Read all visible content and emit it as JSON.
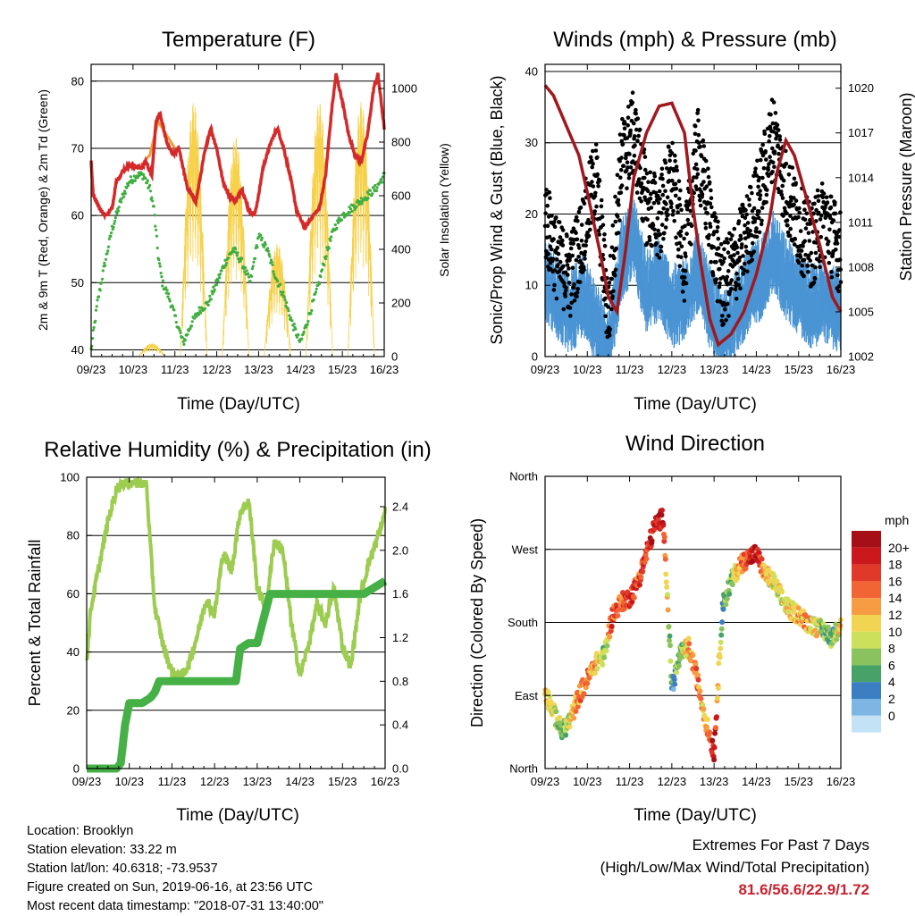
{
  "info": {
    "location": "Location: Brooklyn",
    "elevation": "Station elevation: 33.22 m",
    "latlon": "Station lat/lon: 40.6318; -73.9537",
    "created": "Figure created on Sun, 2019-06-16, at 23:56 UTC",
    "latest": "Most recent data timestamp: \"2018-07-31 13:40:00\""
  },
  "extremes": {
    "title": "Extremes For Past 7 Days",
    "subtitle": "(High/Low/Max Wind/Total Precipitation)",
    "values": "81.6/56.6/22.9/1.72"
  },
  "x_tick_labels": [
    "09/23",
    "10/23",
    "11/23",
    "12/23",
    "13/23",
    "14/23",
    "15/23",
    "16/23"
  ],
  "x_axis_label": "Time (Day/UTC)",
  "colors": {
    "temp_2m": "#d42a2a",
    "temp_9m": "#f29a3a",
    "dewpoint": "#3fae3f",
    "solar": "#f7d14a",
    "sonic_wind": "#4a94d4",
    "gust": "#000000",
    "pressure": "#a0191f",
    "rh": "#9ccc50",
    "rain": "#45b045"
  },
  "chart_data": [
    {
      "type": "line",
      "title": "Temperature (F)",
      "xlabel": "Time (Day/UTC)",
      "ylabel": "2m & 9m T (Red, Orange) & 2m Td (Green)",
      "y2label": "Solar Insolation (Yellow)",
      "x_ticks": [
        "09/23",
        "10/23",
        "11/23",
        "12/23",
        "13/23",
        "14/23",
        "15/23",
        "16/23"
      ],
      "ylim": [
        39,
        82.5
      ],
      "y_ticks": [
        40,
        50,
        60,
        70,
        80
      ],
      "y2lim": [
        0,
        1090
      ],
      "y2_ticks": [
        0,
        200,
        400,
        600,
        800,
        1000
      ],
      "grid": "horizontal",
      "series": [
        {
          "name": "2m T",
          "color": "#d42a2a",
          "axis": "left",
          "x": [
            0,
            0.05,
            0.2,
            0.35,
            0.5,
            0.6,
            0.8,
            1.0,
            1.2,
            1.3,
            1.45,
            1.55,
            1.65,
            1.8,
            1.95,
            2.1,
            2.3,
            2.5,
            2.7,
            2.85,
            3.0,
            3.15,
            3.3,
            3.45,
            3.6,
            3.75,
            3.9,
            4.0,
            4.1,
            4.3,
            4.45,
            4.6,
            4.75,
            4.9,
            5.1,
            5.3,
            5.45,
            5.6,
            5.75,
            5.85,
            6.0,
            6.15,
            6.3,
            6.45,
            6.6,
            6.75,
            6.85,
            7.0
          ],
          "y": [
            68,
            63,
            61,
            60,
            61,
            65,
            67,
            67.5,
            67,
            68,
            66,
            74,
            75,
            71,
            69,
            70,
            64,
            62,
            69,
            73,
            70,
            65,
            63,
            62,
            64,
            61,
            60,
            63,
            67,
            71,
            73,
            70,
            66,
            61,
            58,
            60,
            61,
            66,
            76,
            81,
            77,
            72,
            69,
            68,
            72,
            79,
            81,
            73
          ]
        },
        {
          "name": "9m T",
          "color": "#f29a3a",
          "axis": "left",
          "x": [
            1.2,
            1.4,
            1.6,
            1.8,
            2.0
          ],
          "y": [
            67.5,
            69,
            74,
            72,
            70
          ]
        },
        {
          "name": "2m Td",
          "color": "#3fae3f",
          "axis": "left",
          "x": [
            0,
            0.15,
            0.3,
            0.5,
            0.7,
            0.9,
            1.1,
            1.25,
            1.4,
            1.5,
            1.6,
            1.7,
            1.85,
            2.0,
            2.2,
            2.4,
            2.6,
            2.8,
            3.0,
            3.2,
            3.4,
            3.6,
            3.8,
            4.0,
            4.2,
            4.4,
            4.6,
            4.8,
            5.0,
            5.2,
            5.4,
            5.6,
            5.8,
            6.0,
            6.2,
            6.4,
            6.6,
            6.8,
            7.0
          ],
          "y": [
            40,
            47,
            52,
            58,
            62,
            65,
            66,
            66,
            64,
            61,
            54,
            50,
            48,
            45,
            41,
            44,
            46,
            47,
            50,
            53,
            55,
            53,
            50,
            57,
            55,
            51,
            48,
            44,
            41,
            45,
            49,
            54,
            58,
            60,
            61,
            62,
            63,
            64,
            66
          ]
        },
        {
          "name": "Solar Insolation",
          "color": "#f7d14a",
          "axis": "right",
          "x": [
            0.45,
            0.95,
            1.45,
            1.95,
            2.45,
            2.95,
            3.45,
            3.95,
            4.45,
            4.95,
            5.45,
            5.95,
            6.45,
            6.95
          ],
          "y": [
            0,
            20,
            50,
            30,
            950,
            60,
            820,
            350,
            420,
            580,
            950,
            700,
            950,
            900
          ]
        }
      ]
    },
    {
      "type": "scatter",
      "title": "Winds (mph) & Pressure (mb)",
      "xlabel": "Time (Day/UTC)",
      "ylabel": "Sonic/Prop Wind & Gust (Blue, Black)",
      "y2label": "Station Pressure (Maroon)",
      "x_ticks": [
        "09/23",
        "10/23",
        "11/23",
        "12/23",
        "13/23",
        "14/23",
        "15/23",
        "16/23"
      ],
      "ylim": [
        0,
        41
      ],
      "y_ticks": [
        0,
        10,
        20,
        30,
        40
      ],
      "y2lim": [
        1002,
        1021.6
      ],
      "y2_ticks": [
        1002,
        1005,
        1008,
        1011,
        1014,
        1017,
        1020
      ],
      "grid": "horizontal",
      "series": [
        {
          "name": "Sonic/Prop Wind",
          "color": "#4a94d4",
          "x": [
            0,
            0.3,
            0.6,
            0.9,
            1.2,
            1.5,
            1.8,
            2.1,
            2.4,
            2.7,
            3.0,
            3.3,
            3.6,
            3.9,
            4.2,
            4.5,
            4.8,
            5.1,
            5.4,
            5.7,
            6.0,
            6.3,
            6.6,
            7.0
          ],
          "y": [
            12,
            9,
            7,
            10,
            6,
            2,
            14,
            18,
            10,
            12,
            8,
            9,
            13,
            8,
            4,
            7,
            10,
            12,
            16,
            12,
            10,
            8,
            9,
            7
          ]
        },
        {
          "name": "Gust",
          "color": "#000000",
          "x": [
            0,
            0.3,
            0.6,
            0.9,
            1.2,
            1.5,
            1.8,
            2.1,
            2.4,
            2.7,
            3.0,
            3.3,
            3.6,
            3.9,
            4.2,
            4.5,
            4.8,
            5.1,
            5.4,
            5.7,
            6.0,
            6.3,
            6.6,
            7.0
          ],
          "y": [
            20,
            14,
            12,
            18,
            26,
            6,
            28,
            32,
            22,
            20,
            26,
            14,
            30,
            20,
            10,
            14,
            18,
            24,
            32,
            24,
            19,
            16,
            20,
            15
          ]
        },
        {
          "name": "Station Pressure",
          "color": "#a0191f",
          "axis": "right",
          "x": [
            0,
            0.2,
            0.5,
            0.8,
            1.0,
            1.3,
            1.5,
            1.7,
            1.9,
            2.1,
            2.4,
            2.7,
            3.0,
            3.3,
            3.5,
            3.7,
            3.9,
            4.1,
            4.4,
            4.7,
            5.0,
            5.3,
            5.5,
            5.7,
            5.9,
            6.2,
            6.5,
            6.8,
            7.0
          ],
          "y": [
            1020.2,
            1019.5,
            1017.5,
            1015.5,
            1013,
            1009,
            1006,
            1005,
            1009,
            1014,
            1017,
            1018.8,
            1019,
            1017,
            1012,
            1008,
            1004.5,
            1002.8,
            1003.5,
            1005,
            1007.5,
            1011,
            1014.5,
            1016.5,
            1015.5,
            1012.5,
            1009.5,
            1006,
            1005
          ]
        }
      ]
    },
    {
      "type": "line",
      "title": "Relative Humidity (%) & Precipitation (in)",
      "xlabel": "Time (Day/UTC)",
      "ylabel": "Percent & Total Rainfall",
      "x_ticks": [
        "09/23",
        "10/23",
        "11/23",
        "12/23",
        "13/23",
        "14/23",
        "15/23",
        "16/23"
      ],
      "ylim": [
        0,
        100
      ],
      "y_ticks": [
        0,
        20,
        40,
        60,
        80,
        100
      ],
      "y2lim": [
        0,
        2.67
      ],
      "y2_ticks": [
        0.0,
        0.4,
        0.8,
        1.2,
        1.6,
        2.0,
        2.4
      ],
      "grid": "horizontal",
      "series": [
        {
          "name": "Relative Humidity",
          "color": "#9ccc50",
          "axis": "left",
          "x": [
            0,
            0.1,
            0.3,
            0.5,
            0.7,
            0.9,
            1.0,
            1.2,
            1.4,
            1.5,
            1.6,
            1.8,
            2.0,
            2.2,
            2.4,
            2.6,
            2.8,
            3.0,
            3.2,
            3.4,
            3.6,
            3.8,
            3.9,
            4.0,
            4.2,
            4.4,
            4.6,
            4.8,
            5.0,
            5.2,
            5.4,
            5.6,
            5.8,
            6.0,
            6.2,
            6.4,
            6.6,
            6.8,
            7.0
          ],
          "y": [
            37,
            55,
            70,
            85,
            96,
            98.5,
            98.5,
            98.5,
            98,
            75,
            55,
            42,
            33,
            31,
            36,
            46,
            58,
            53,
            74,
            68,
            88,
            92,
            78,
            62,
            55,
            78,
            75,
            50,
            32,
            42,
            56,
            50,
            62,
            42,
            35,
            58,
            70,
            78,
            88
          ]
        },
        {
          "name": "Total Rainfall",
          "color": "#45b045",
          "axis": "right",
          "x": [
            0,
            0.7,
            0.8,
            0.9,
            1.0,
            1.3,
            1.5,
            1.6,
            1.7,
            2.0,
            2.5,
            3.0,
            3.3,
            3.5,
            3.6,
            3.8,
            4.0,
            4.1,
            4.3,
            4.6,
            5.0,
            5.5,
            6.0,
            6.5,
            7.0
          ],
          "y": [
            0,
            0,
            0.05,
            0.4,
            0.6,
            0.6,
            0.65,
            0.7,
            0.8,
            0.8,
            0.8,
            0.8,
            0.8,
            0.8,
            1.1,
            1.15,
            1.15,
            1.3,
            1.6,
            1.6,
            1.6,
            1.6,
            1.6,
            1.6,
            1.72
          ]
        }
      ]
    },
    {
      "type": "scatter",
      "title": "Wind Direction",
      "xlabel": "Time (Day/UTC)",
      "ylabel": "Direction (Colored By Speed)",
      "x_ticks": [
        "09/23",
        "10/23",
        "11/23",
        "12/23",
        "13/23",
        "14/23",
        "15/23",
        "16/23"
      ],
      "y_ticks": [
        "North",
        "East",
        "South",
        "West",
        "North"
      ],
      "ylim": [
        0,
        360
      ],
      "grid": "horizontal",
      "colorbar": {
        "title": "mph",
        "labels": [
          "20+",
          "18",
          "16",
          "14",
          "12",
          "10",
          "8",
          "6",
          "4",
          "2",
          "0"
        ],
        "colors": [
          "#a50f15",
          "#cb181d",
          "#e0392a",
          "#f26434",
          "#f79c42",
          "#f1d552",
          "#cce05c",
          "#8ac25d",
          "#47a267",
          "#3b7fc2",
          "#7eb6e3",
          "#c4e2f6"
        ]
      },
      "series": [
        {
          "name": "Direction",
          "x": [
            0,
            0.2,
            0.4,
            0.6,
            0.8,
            1.0,
            1.2,
            1.4,
            1.6,
            1.8,
            2.0,
            2.2,
            2.6,
            2.8,
            3.0,
            3.2,
            3.4,
            3.6,
            3.8,
            4.0,
            4.2,
            4.4,
            4.6,
            4.8,
            5.0,
            5.2,
            5.4,
            5.6,
            5.8,
            6.0,
            6.2,
            6.4,
            6.6,
            6.8,
            7.0
          ],
          "y": [
            95,
            70,
            45,
            60,
            90,
            110,
            130,
            140,
            190,
            205,
            210,
            230,
            300,
            310,
            100,
            140,
            150,
            110,
            60,
            20,
            200,
            230,
            250,
            260,
            265,
            240,
            230,
            210,
            195,
            190,
            180,
            175,
            170,
            160,
            180
          ],
          "speed": [
            10,
            8,
            6,
            9,
            12,
            14,
            11,
            6,
            15,
            14,
            16,
            15,
            18,
            17,
            3,
            6,
            12,
            14,
            10,
            20,
            4,
            6,
            12,
            16,
            18,
            11,
            9,
            8,
            10,
            11,
            12,
            9,
            6,
            5,
            10
          ]
        }
      ]
    }
  ]
}
